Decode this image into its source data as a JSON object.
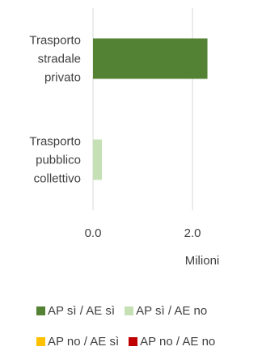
{
  "chart_data": {
    "type": "bar",
    "orientation": "horizontal",
    "stacked": true,
    "categories": [
      [
        "Trasporto",
        "stradale",
        "privato"
      ],
      [
        "Trasporto",
        "pubblico",
        "collettivo"
      ]
    ],
    "series": [
      {
        "name": "AP sì / AE sì",
        "color": "#548235",
        "values": [
          2.3,
          0.0
        ]
      },
      {
        "name": "AP sì / AE no",
        "color": "#C5E0B4",
        "values": [
          0.0,
          0.18
        ]
      },
      {
        "name": "AP no / AE sì",
        "color": "#FFC000",
        "values": [
          0.0,
          0.0
        ]
      },
      {
        "name": "AP no / AE no",
        "color": "#C00000",
        "values": [
          0.0,
          0.0
        ]
      }
    ],
    "x_ticks": [
      "0.0",
      "2.0"
    ],
    "xlim": [
      0,
      2.6
    ],
    "axis_unit_label": "Milioni",
    "grid": true,
    "legend_position": "bottom"
  }
}
